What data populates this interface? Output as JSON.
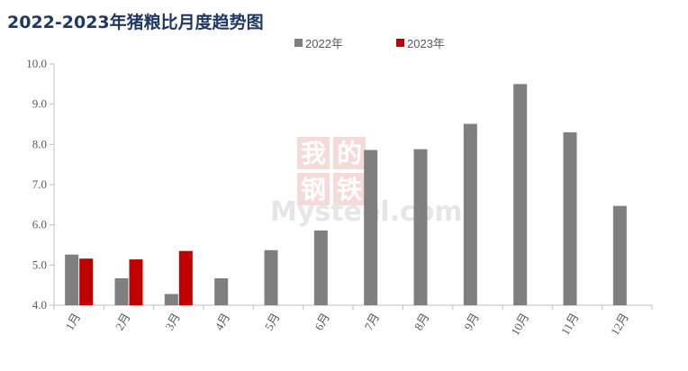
{
  "title": "2022-2023年猪粮比月度趋势图",
  "watermark": {
    "text": "Mysteel.com",
    "logo_chars": [
      "我",
      "的",
      "钢",
      "铁"
    ]
  },
  "chart_data": {
    "type": "bar",
    "title": "2022-2023年猪粮比月度趋势图",
    "categories": [
      "1月",
      "2月",
      "3月",
      "4月",
      "5月",
      "6月",
      "7月",
      "8月",
      "9月",
      "10月",
      "11月",
      "12月"
    ],
    "series": [
      {
        "name": "2022年",
        "color": "#7f7f7f",
        "values": [
          5.26,
          4.67,
          4.28,
          4.67,
          5.37,
          5.86,
          7.86,
          7.88,
          8.51,
          9.5,
          8.3,
          6.47
        ]
      },
      {
        "name": "2023年",
        "color": "#c00000",
        "values": [
          5.16,
          5.14,
          5.35,
          null,
          null,
          null,
          null,
          null,
          null,
          null,
          null,
          null
        ]
      }
    ],
    "ylim": [
      4.0,
      10.0
    ],
    "yticks": [
      "4.0",
      "5.0",
      "6.0",
      "7.0",
      "8.0",
      "9.0",
      "10.0"
    ],
    "grid": false,
    "legend_position": "top"
  }
}
